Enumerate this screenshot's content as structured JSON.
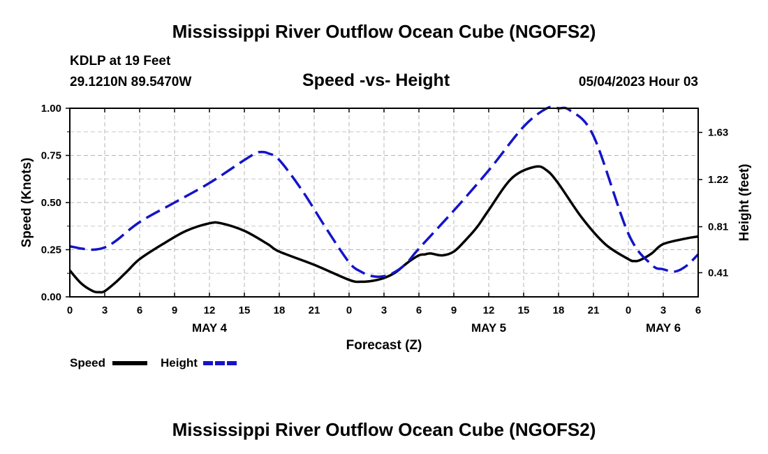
{
  "page": {
    "title_top": "Mississippi River Outflow Ocean Cube (NGOFS2)",
    "title_bottom": "Mississippi River Outflow Ocean Cube (NGOFS2)",
    "station_line": "KDLP at 19 Feet",
    "coords": "29.1210N  89.5470W",
    "subtitle": "Speed -vs- Height",
    "datetime": "05/04/2023 Hour 03"
  },
  "chart_data": {
    "type": "line",
    "title": "Speed -vs- Height",
    "xlabel": "Forecast (Z)",
    "ylabel": "Speed (Knots)",
    "y2label": "Height (feet)",
    "xlim": [
      0,
      54
    ],
    "ylim": [
      0,
      1.0
    ],
    "y2lim": [
      0.2,
      1.84
    ],
    "x_ticks": [
      0,
      3,
      6,
      9,
      12,
      15,
      18,
      21,
      24,
      27,
      30,
      33,
      36,
      39,
      42,
      45,
      48,
      51,
      54
    ],
    "x_tick_labels": [
      "0",
      "3",
      "6",
      "9",
      "12",
      "15",
      "18",
      "21",
      "0",
      "3",
      "6",
      "9",
      "12",
      "15",
      "18",
      "21",
      "0",
      "3",
      "6"
    ],
    "y_ticks": [
      0,
      0.25,
      0.5,
      0.75,
      1.0
    ],
    "y_tick_labels": [
      "0.00",
      "0.25",
      "0.50",
      "0.75",
      "1.00"
    ],
    "y2_ticks": [
      0.41,
      0.81,
      1.22,
      1.63
    ],
    "y2_tick_labels": [
      "0.41",
      "0.81",
      "1.22",
      "1.63"
    ],
    "day_labels": [
      {
        "x": 12,
        "label": "MAY 4"
      },
      {
        "x": 36,
        "label": "MAY 5"
      },
      {
        "x": 51,
        "label": "MAY 6"
      }
    ],
    "series": [
      {
        "name": "Speed",
        "axis": "left",
        "color": "#000000",
        "dash": "solid",
        "x": [
          0,
          1,
          2,
          2.5,
          3,
          4,
          5,
          6,
          8,
          10,
          12,
          13,
          15,
          17,
          18,
          21,
          24,
          25,
          26,
          27,
          28,
          29,
          30,
          30.5,
          31,
          32,
          33,
          34,
          35,
          36,
          38,
          40,
          41,
          42,
          44,
          46,
          48,
          48.5,
          49,
          50,
          51,
          53,
          54
        ],
        "y": [
          0.14,
          0.07,
          0.03,
          0.025,
          0.03,
          0.08,
          0.14,
          0.2,
          0.28,
          0.35,
          0.39,
          0.39,
          0.35,
          0.28,
          0.24,
          0.17,
          0.09,
          0.08,
          0.085,
          0.1,
          0.13,
          0.18,
          0.22,
          0.225,
          0.23,
          0.22,
          0.24,
          0.3,
          0.37,
          0.46,
          0.63,
          0.69,
          0.67,
          0.6,
          0.42,
          0.28,
          0.2,
          0.19,
          0.195,
          0.23,
          0.28,
          0.31,
          0.32
        ]
      },
      {
        "name": "Height",
        "axis": "right",
        "color": "#1414c8",
        "dash": "dashed",
        "x": [
          0,
          1,
          2,
          3,
          4,
          6,
          9,
          12,
          15,
          16,
          16.5,
          17,
          18,
          20,
          22,
          24,
          25,
          26,
          27,
          28,
          29,
          30,
          33,
          36,
          39,
          41,
          42,
          43,
          45,
          48,
          50,
          51,
          52,
          53,
          54
        ],
        "y": [
          0.64,
          0.62,
          0.61,
          0.63,
          0.69,
          0.85,
          1.02,
          1.19,
          1.39,
          1.45,
          1.46,
          1.45,
          1.39,
          1.12,
          0.8,
          0.5,
          0.42,
          0.38,
          0.38,
          0.42,
          0.5,
          0.62,
          0.95,
          1.3,
          1.68,
          1.84,
          1.84,
          1.82,
          1.6,
          0.75,
          0.48,
          0.44,
          0.42,
          0.47,
          0.57
        ]
      }
    ],
    "legend": [
      "Speed",
      "Height"
    ],
    "legend_position": "bottom-left",
    "grid": true
  }
}
